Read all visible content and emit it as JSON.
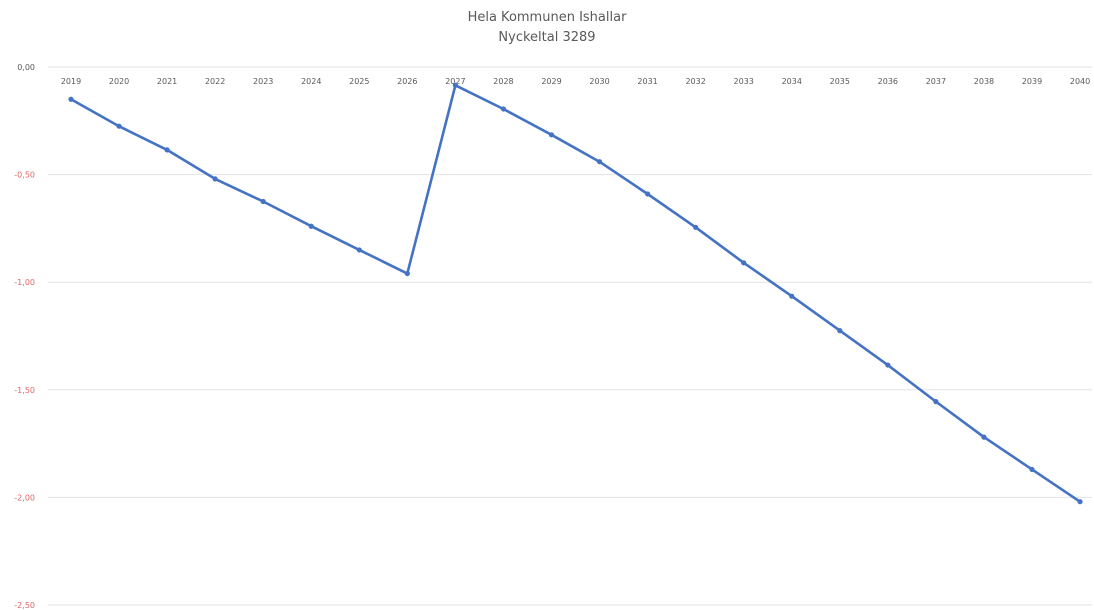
{
  "chart_data": {
    "type": "line",
    "title": "Hela Kommunen Ishallar",
    "subtitle": "Nyckeltal 3289",
    "xlabel": "",
    "ylabel": "",
    "categories": [
      "2019",
      "2020",
      "2021",
      "2022",
      "2023",
      "2024",
      "2025",
      "2026",
      "2027",
      "2028",
      "2029",
      "2030",
      "2031",
      "2032",
      "2033",
      "2034",
      "2035",
      "2036",
      "2037",
      "2038",
      "2039",
      "2040"
    ],
    "series": [
      {
        "values": [
          -0.15,
          -0.275,
          -0.385,
          -0.52,
          -0.625,
          -0.74,
          -0.85,
          -0.96,
          -0.085,
          -0.195,
          -0.315,
          -0.44,
          -0.59,
          -0.745,
          -0.91,
          -1.065,
          -1.225,
          -1.385,
          -1.555,
          -1.72,
          -1.87,
          -2.02
        ]
      }
    ],
    "ylim": [
      -2.5,
      0
    ],
    "yticks": [
      "0,00",
      "-0,50",
      "-1,00",
      "-1,50",
      "-2,00",
      "-2,50"
    ],
    "x_axis_position": "top",
    "grid": true,
    "legend": "none",
    "colors": {
      "line": "#4472c4",
      "grid": "#e3e3e3",
      "tick_zero": "#595959",
      "tick_negative": "#e06666"
    }
  }
}
